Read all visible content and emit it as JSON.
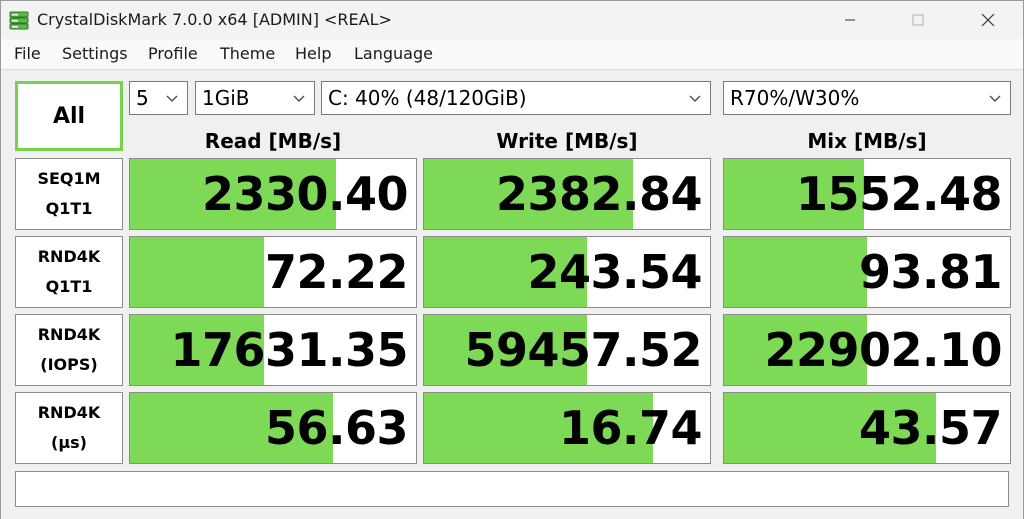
{
  "window": {
    "title": "CrystalDiskMark 7.0.0 x64 [ADMIN] <REAL>"
  },
  "menu": [
    "File",
    "Settings",
    "Profile",
    "Theme",
    "Help",
    "Language"
  ],
  "controls": {
    "all_label": "All",
    "count": "5",
    "size": "1GiB",
    "drive": "C: 40% (48/120GiB)",
    "mix": "R70%/W30%"
  },
  "headers": {
    "read": "Read [MB/s]",
    "write": "Write [MB/s]",
    "mix": "Mix [MB/s]"
  },
  "rows": [
    {
      "label1": "SEQ1M",
      "label2": "Q1T1",
      "read": "2330.40",
      "write": "2382.84",
      "mix": "1552.48",
      "read_fill": 0.72,
      "write_fill": 0.73,
      "mix_fill": 0.49
    },
    {
      "label1": "RND4K",
      "label2": "Q1T1",
      "read": "72.22",
      "write": "243.54",
      "mix": "93.81",
      "read_fill": 0.47,
      "write_fill": 0.57,
      "mix_fill": 0.5
    },
    {
      "label1": "RND4K",
      "label2": "(IOPS)",
      "read": "17631.35",
      "write": "59457.52",
      "mix": "22902.10",
      "read_fill": 0.47,
      "write_fill": 0.57,
      "mix_fill": 0.5
    },
    {
      "label1": "RND4K",
      "label2": "(µs)",
      "read": "56.63",
      "write": "16.74",
      "mix": "43.57",
      "read_fill": 0.71,
      "write_fill": 0.8,
      "mix_fill": 0.74
    }
  ],
  "comment": "",
  "colors": {
    "bar": "#7ed957",
    "all_border": "#79d24e"
  },
  "icons": {
    "app": "disk-stack-icon",
    "minimize": "minimize-icon",
    "maximize": "maximize-icon",
    "close": "close-icon",
    "dropdown": "chevron-down-icon"
  }
}
